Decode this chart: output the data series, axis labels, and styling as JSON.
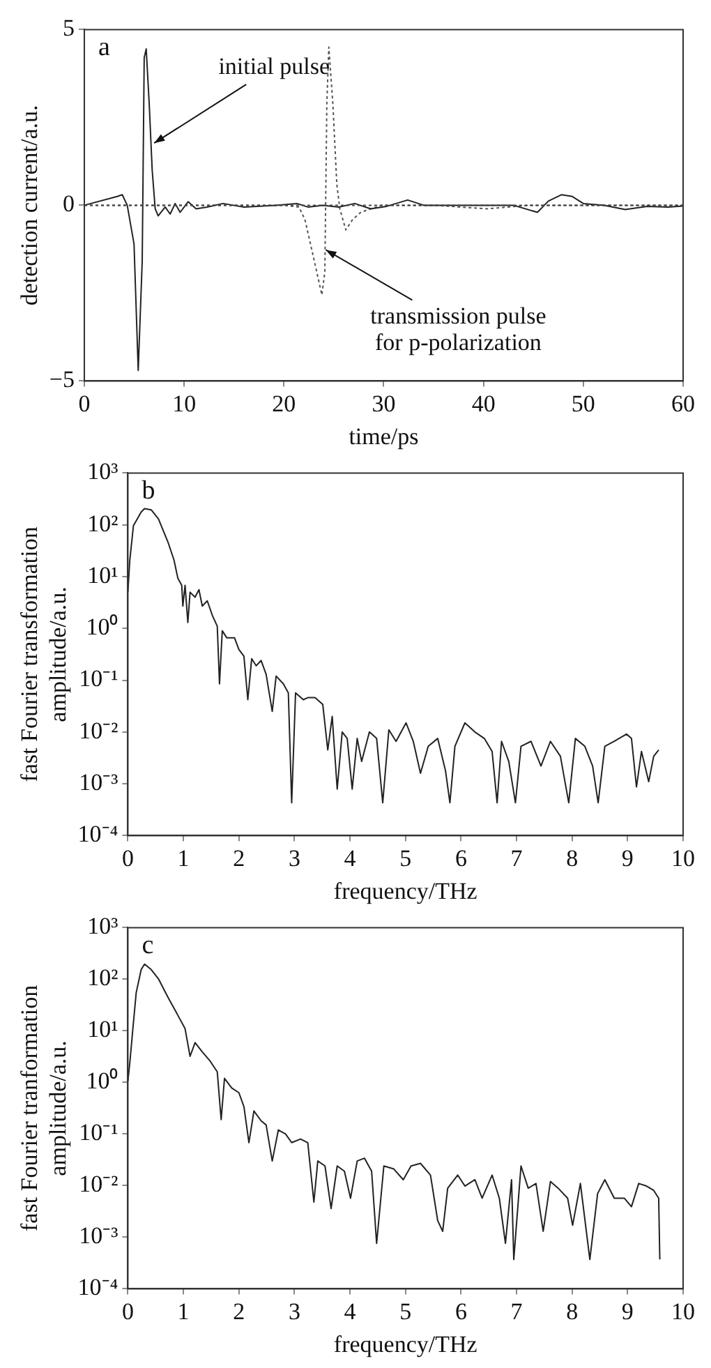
{
  "chart_data": [
    {
      "type": "line",
      "xlabel": "time/ps",
      "ylabel": "detection current/a.u.",
      "xlim": [
        0,
        60
      ],
      "xticks": [
        0,
        10,
        20,
        30,
        40,
        50,
        60
      ],
      "ylim": [
        -5,
        5
      ],
      "yticks": [
        {
          "value": -5,
          "label": "−5"
        },
        0,
        5
      ],
      "grid": false,
      "marker": "none",
      "series": [
        {
          "color": "#222222",
          "line_style": "solid",
          "x": [
            0,
            3.3,
            3.8,
            4.3,
            4.98,
            5.4,
            5.8,
            6.0,
            6.2,
            6.5,
            6.8,
            7.1,
            7.4,
            8.1,
            8.6,
            9.1,
            9.6,
            10.4,
            11.2,
            12.3,
            13.9,
            16,
            19.2,
            21.3,
            22.4,
            23.9,
            25.5,
            27.1,
            28.7,
            30.3,
            32.4,
            34,
            37.7,
            40.4,
            43,
            45.4,
            46.5,
            47.8,
            48.9,
            50,
            52.1,
            54.2,
            56.4,
            58.5,
            60
          ],
          "values": [
            0,
            0.25,
            0.3,
            0,
            -1.1,
            -4.7,
            -1.6,
            4.2,
            4.45,
            2.9,
            1.0,
            -0.1,
            -0.3,
            -0.05,
            -0.25,
            0.05,
            -0.2,
            0.1,
            -0.1,
            -0.05,
            0.05,
            -0.05,
            0,
            0.05,
            -0.05,
            0,
            -0.05,
            0.05,
            -0.1,
            -0.03,
            0.15,
            0,
            0,
            0,
            0,
            -0.2,
            0.12,
            0.3,
            0.25,
            0.05,
            0,
            -0.12,
            -0.03,
            -0.05,
            -0.02
          ]
        },
        {
          "color": "#555555",
          "line_style": "dotted",
          "x": [
            0,
            10,
            20,
            21.5,
            22.1,
            22.9,
            23.8,
            24.1,
            24.3,
            24.5,
            24.9,
            25.3,
            25.6,
            26.2,
            26.9,
            27.7,
            28.7,
            29.8,
            35,
            40.4,
            44.6,
            48,
            60
          ],
          "values": [
            0,
            0,
            0,
            -0.05,
            -0.4,
            -1.4,
            -2.55,
            -1.9,
            2.9,
            4.5,
            2.9,
            0.6,
            -0.1,
            -0.7,
            -0.4,
            -0.2,
            -0.1,
            0,
            0,
            -0.1,
            0,
            0,
            0
          ]
        }
      ],
      "ref_lines": [
        {
          "axis": "y",
          "value": 0,
          "color": "#444444",
          "line_style": "dotted"
        }
      ],
      "annotations": [
        "a",
        {
          "text": "initial pulse",
          "x": 7.0,
          "y": 1.77
        },
        {
          "text": "transmission pulse for p-polarization",
          "x": 24.2,
          "y": -1.27
        }
      ]
    },
    {
      "type": "line",
      "xlabel": "frequency/THz",
      "ylabel": "fast Fourier transformation amplitude/a.u.",
      "log": "y",
      "xlim": [
        0,
        10
      ],
      "xticks": [
        0,
        1,
        2,
        3,
        4,
        5,
        6,
        7,
        8,
        9,
        10
      ],
      "ylim": [
        0.0001,
        1000
      ],
      "yticks": [
        {
          "value": 0.0001,
          "label": "10⁻⁴"
        },
        {
          "value": 0.001,
          "label": "10⁻³"
        },
        {
          "value": 0.01,
          "label": "10⁻²"
        },
        {
          "value": 0.1,
          "label": "10⁻¹"
        },
        {
          "value": 1,
          "label": "10⁰"
        },
        {
          "value": 10,
          "label": "10¹"
        },
        {
          "value": 100,
          "label": "10²"
        },
        {
          "value": 1000,
          "label": "10³"
        }
      ],
      "grid": false,
      "marker": "none",
      "series": [
        {
          "color": "#222222",
          "line_style": "solid",
          "x": [
            0,
            0.035,
            0.1,
            0.24,
            0.3,
            0.42,
            0.55,
            0.72,
            0.83,
            0.9,
            0.97,
            0.99,
            1.03,
            1.08,
            1.12,
            1.21,
            1.28,
            1.34,
            1.43,
            1.52,
            1.61,
            1.65,
            1.7,
            1.78,
            1.92,
            2.0,
            2.09,
            2.16,
            2.23,
            2.31,
            2.4,
            2.49,
            2.6,
            2.67,
            2.8,
            2.89,
            2.95,
            3.02,
            3.16,
            3.24,
            3.37,
            3.51,
            3.6,
            3.68,
            3.77,
            3.86,
            3.95,
            4.04,
            4.13,
            4.21,
            4.35,
            4.48,
            4.59,
            4.7,
            4.83,
            5.01,
            5.14,
            5.27,
            5.41,
            5.58,
            5.72,
            5.8,
            5.89,
            6.07,
            6.25,
            6.42,
            6.56,
            6.65,
            6.73,
            6.86,
            6.98,
            7.08,
            7.26,
            7.44,
            7.61,
            7.79,
            7.94,
            8.06,
            8.23,
            8.37,
            8.47,
            8.59,
            8.76,
            8.98,
            9.07,
            9.16,
            9.25,
            9.38,
            9.47,
            9.56
          ],
          "values": [
            5,
            21,
            96,
            177,
            205,
            195,
            130,
            47,
            21,
            9.3,
            6.8,
            2.7,
            6.8,
            1.3,
            5,
            4,
            5.6,
            2.7,
            3.4,
            1.8,
            1.1,
            0.085,
            0.9,
            0.66,
            0.66,
            0.39,
            0.29,
            0.042,
            0.26,
            0.19,
            0.24,
            0.13,
            0.025,
            0.12,
            0.085,
            0.057,
            0.00043,
            0.057,
            0.042,
            0.046,
            0.046,
            0.034,
            0.0045,
            0.02,
            0.00079,
            0.01,
            0.0075,
            0.00079,
            0.0075,
            0.0027,
            0.01,
            0.0075,
            0.00043,
            0.011,
            0.0066,
            0.015,
            0.0066,
            0.0016,
            0.0053,
            0.0075,
            0.0018,
            0.00043,
            0.0053,
            0.015,
            0.01,
            0.0075,
            0.0042,
            0.00043,
            0.0066,
            0.0027,
            0.00043,
            0.0053,
            0.0066,
            0.0022,
            0.0066,
            0.0034,
            0.00043,
            0.0075,
            0.0053,
            0.0022,
            0.00043,
            0.0053,
            0.0066,
            0.0091,
            0.0075,
            0.00087,
            0.0042,
            0.0011,
            0.0034,
            0.0045
          ]
        }
      ],
      "annotations": [
        "b"
      ]
    },
    {
      "type": "line",
      "xlabel": "frequency/THz",
      "ylabel": "fast Fourier tranformation amplitude/a.u.",
      "log": "y",
      "xlim": [
        0,
        10
      ],
      "xticks": [
        0,
        1,
        2,
        3,
        4,
        5,
        6,
        7,
        8,
        9,
        10
      ],
      "ylim": [
        0.0001,
        1000
      ],
      "yticks": [
        {
          "value": 0.0001,
          "label": "10⁻⁴"
        },
        {
          "value": 0.001,
          "label": "10⁻³"
        },
        {
          "value": 0.01,
          "label": "10⁻²"
        },
        {
          "value": 0.1,
          "label": "10⁻¹"
        },
        {
          "value": 1,
          "label": "10⁰"
        },
        {
          "value": 10,
          "label": "10¹"
        },
        {
          "value": 100,
          "label": "10²"
        },
        {
          "value": 1000,
          "label": "10³"
        }
      ],
      "grid": false,
      "marker": "none",
      "series": [
        {
          "color": "#222222",
          "line_style": "solid",
          "x": [
            0,
            0.035,
            0.09,
            0.15,
            0.24,
            0.3,
            0.42,
            0.55,
            0.72,
            0.9,
            1.03,
            1.12,
            1.21,
            1.34,
            1.48,
            1.61,
            1.68,
            1.74,
            1.87,
            2.0,
            2.09,
            2.18,
            2.27,
            2.4,
            2.49,
            2.6,
            2.71,
            2.84,
            2.95,
            3.11,
            3.24,
            3.35,
            3.42,
            3.55,
            3.66,
            3.77,
            3.9,
            4.01,
            4.13,
            4.26,
            4.39,
            4.48,
            4.61,
            4.79,
            4.96,
            5.1,
            5.27,
            5.45,
            5.58,
            5.67,
            5.76,
            5.94,
            6.07,
            6.25,
            6.38,
            6.56,
            6.69,
            6.8,
            6.91,
            6.95,
            7.08,
            7.21,
            7.35,
            7.48,
            7.61,
            7.75,
            7.92,
            8.01,
            8.15,
            8.32,
            8.46,
            8.59,
            8.76,
            8.94,
            9.07,
            9.2,
            9.34,
            9.47,
            9.56,
            9.58
          ],
          "values": [
            1.05,
            2.4,
            11,
            55,
            154,
            196,
            154,
            102,
            45,
            20,
            11,
            3.2,
            5.9,
            3.9,
            2.6,
            1.6,
            0.19,
            1.2,
            0.78,
            0.63,
            0.34,
            0.068,
            0.28,
            0.18,
            0.15,
            0.03,
            0.12,
            0.1,
            0.068,
            0.08,
            0.068,
            0.0048,
            0.03,
            0.024,
            0.0036,
            0.024,
            0.019,
            0.0057,
            0.03,
            0.034,
            0.019,
            0.00076,
            0.024,
            0.021,
            0.013,
            0.024,
            0.027,
            0.016,
            0.0021,
            0.0013,
            0.0089,
            0.016,
            0.0098,
            0.013,
            0.0057,
            0.016,
            0.0057,
            0.00076,
            0.013,
            0.00037,
            0.024,
            0.0089,
            0.011,
            0.0013,
            0.012,
            0.0089,
            0.0057,
            0.0017,
            0.011,
            0.00037,
            0.007,
            0.013,
            0.0057,
            0.0057,
            0.0039,
            0.011,
            0.0098,
            0.0081,
            0.0057,
            0.00037
          ]
        }
      ],
      "annotations": [
        "c"
      ]
    }
  ]
}
